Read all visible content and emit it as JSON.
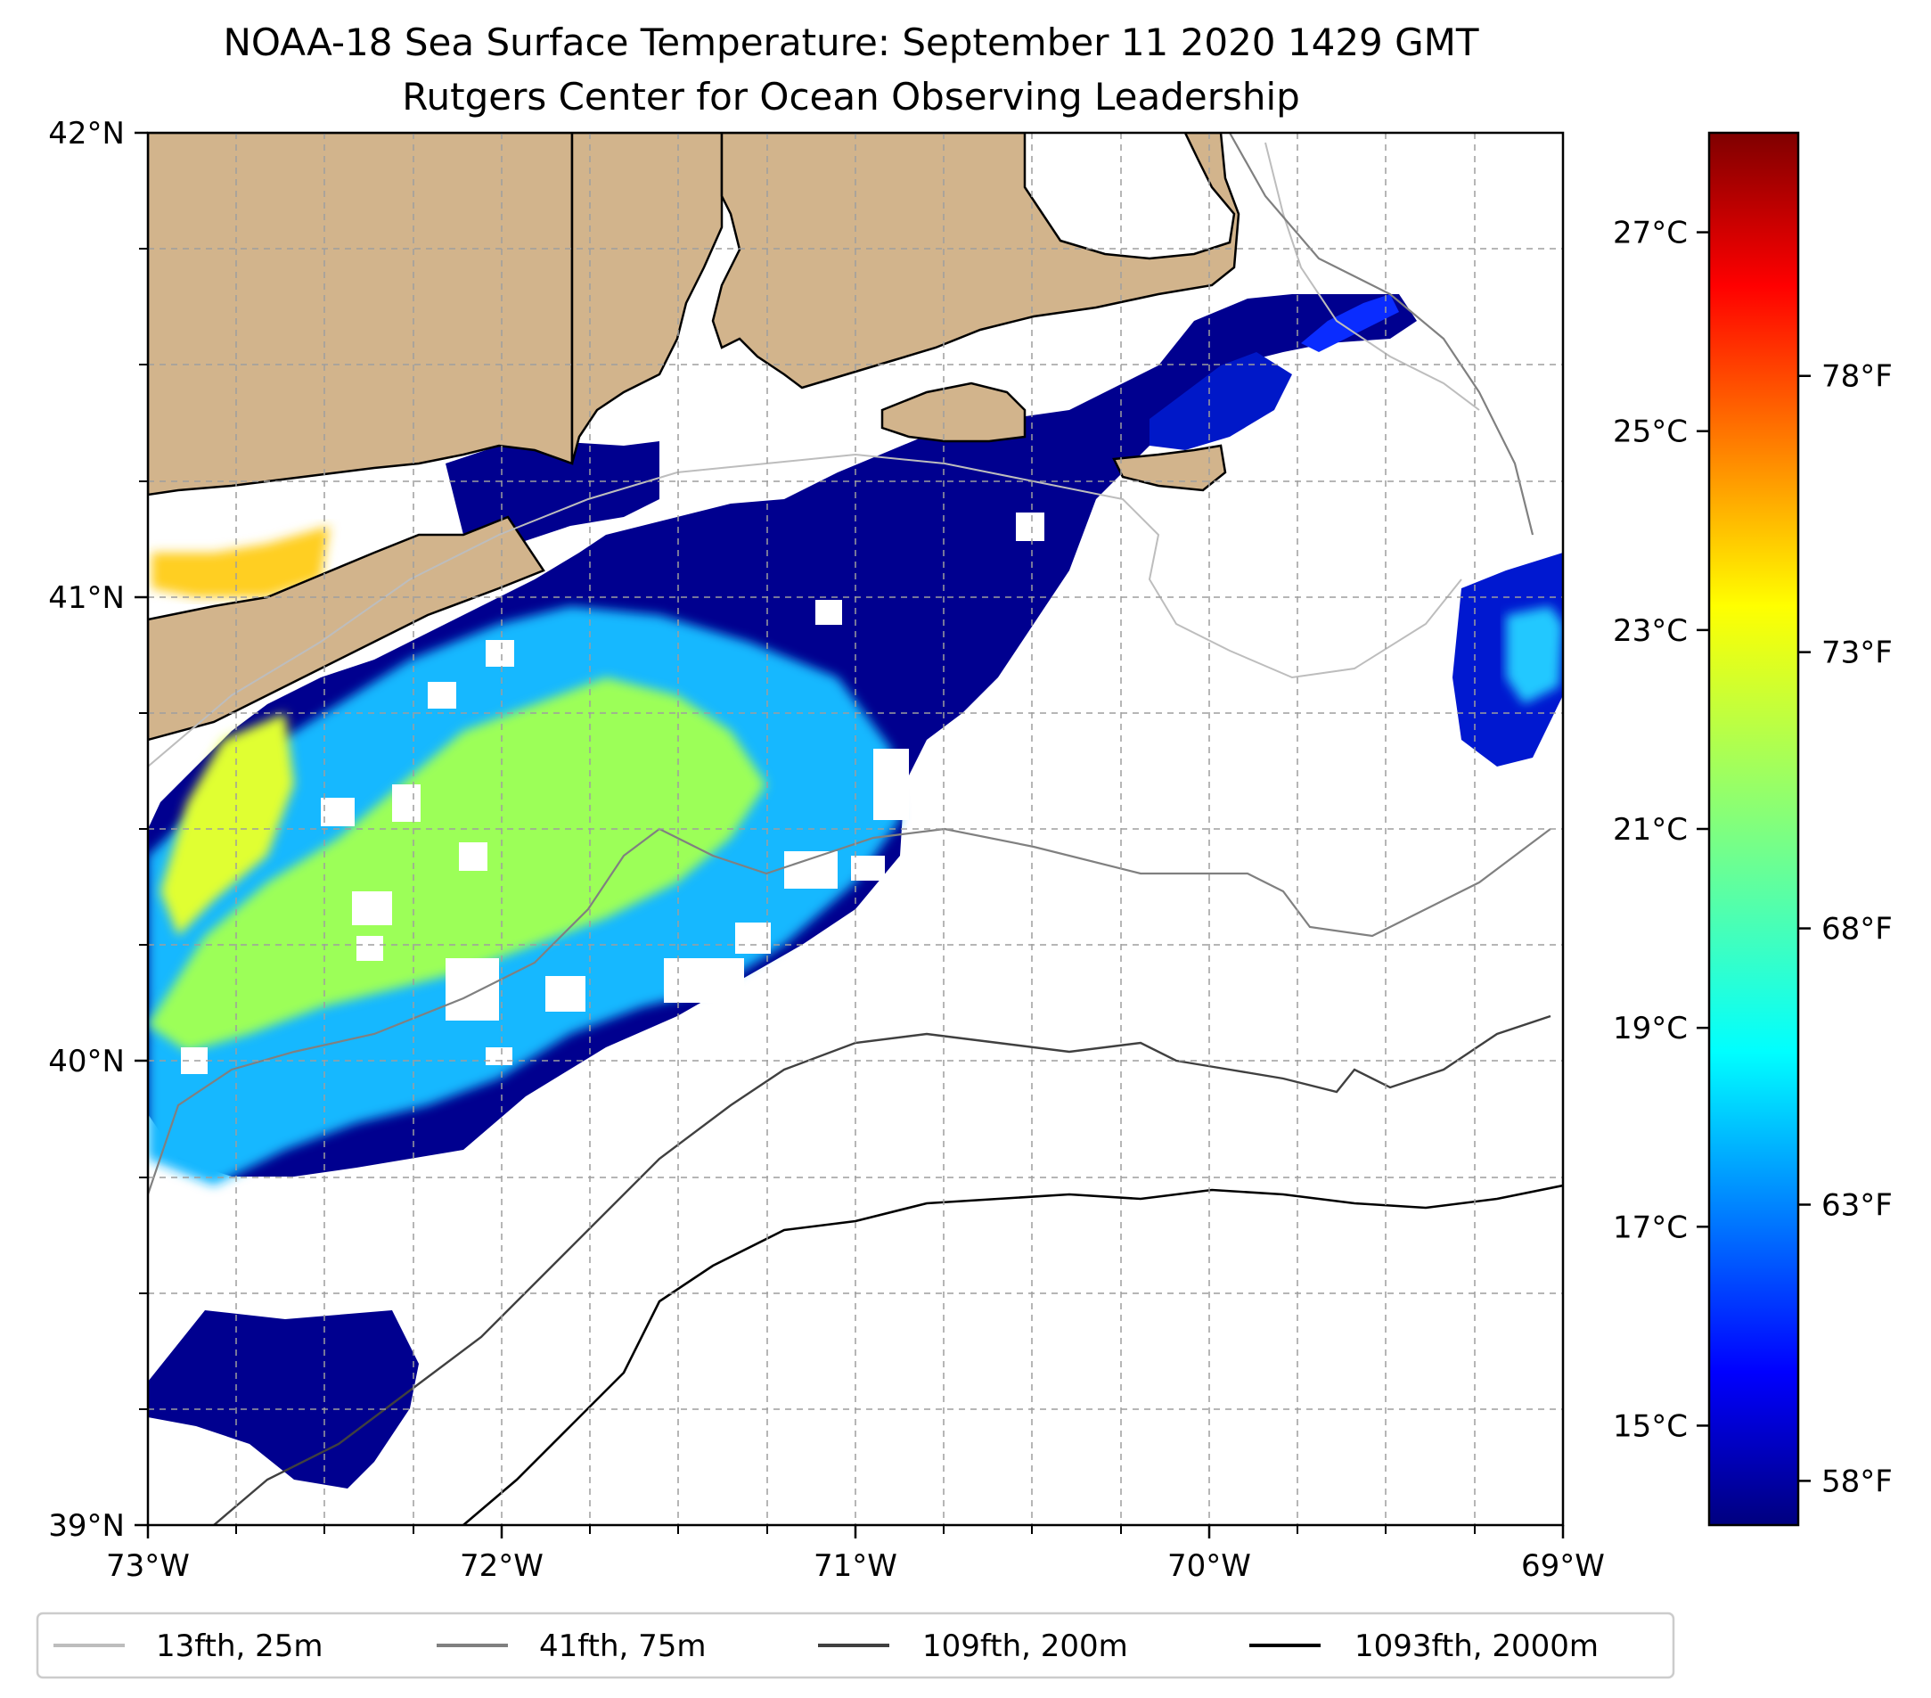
{
  "title": "NOAA-18 Sea Surface Temperature: September 11 2020 1429 GMT",
  "subtitle": "Rutgers Center for Ocean Observing Leadership",
  "map": {
    "lon_range": [
      -73,
      -69
    ],
    "lat_range": [
      39,
      42
    ],
    "x_ticks": [
      "73°W",
      "72°W",
      "71°W",
      "70°W",
      "69°W"
    ],
    "y_ticks": [
      "42°N",
      "41°N",
      "40°N",
      "39°N"
    ],
    "gridlines": true,
    "land_color": "#d2b48c",
    "missing_data_color": "#ffffff",
    "colormap": "jet"
  },
  "colorbar": {
    "vmin_c": 14,
    "vmax_c": 28,
    "celsius_ticks": [
      "27°C",
      "25°C",
      "23°C",
      "21°C",
      "19°C",
      "17°C",
      "15°C"
    ],
    "celsius_values": [
      27,
      25,
      23,
      21,
      19,
      17,
      15
    ],
    "fahrenheit_ticks": [
      "78°F",
      "73°F",
      "68°F",
      "63°F",
      "58°F"
    ],
    "fahrenheit_values": [
      78,
      73,
      68,
      63,
      58
    ],
    "colors": [
      "#00007f",
      "#0000ff",
      "#007fff",
      "#00ffff",
      "#7fff7f",
      "#ffff00",
      "#ff7f00",
      "#ff0000",
      "#7f0000"
    ]
  },
  "legend": {
    "placement": "bottom",
    "items": [
      {
        "label": "13fth, 25m",
        "color": "#bdbdbd"
      },
      {
        "label": "41fth, 75m",
        "color": "#808080"
      },
      {
        "label": "109fth, 200m",
        "color": "#404040"
      },
      {
        "label": "1093fth, 2000m",
        "color": "#000000"
      }
    ]
  }
}
